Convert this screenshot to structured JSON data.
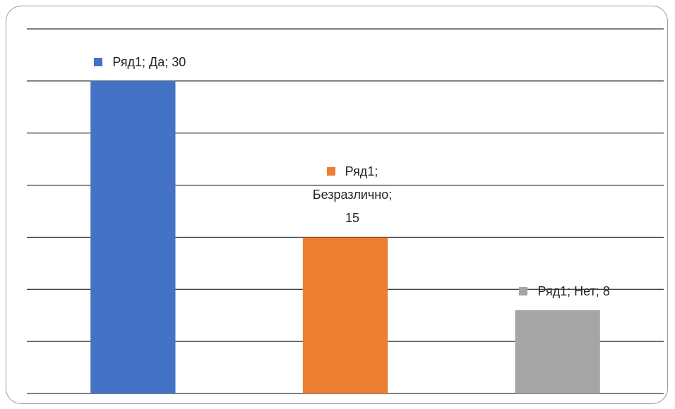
{
  "chart_data": {
    "type": "bar",
    "values": [
      30,
      15,
      8
    ],
    "value_labels": [
      "Ряд1; Да; 30",
      "Ряд1; Безразлично; 15",
      "Ряд1; Нет; 8"
    ],
    "colors": [
      "#4472c4",
      "#ed7d31",
      "#a5a5a5"
    ],
    "ylim": [
      0,
      35
    ],
    "yticks": [
      0,
      5,
      10,
      15,
      20,
      25,
      30,
      35
    ],
    "grid": true
  }
}
